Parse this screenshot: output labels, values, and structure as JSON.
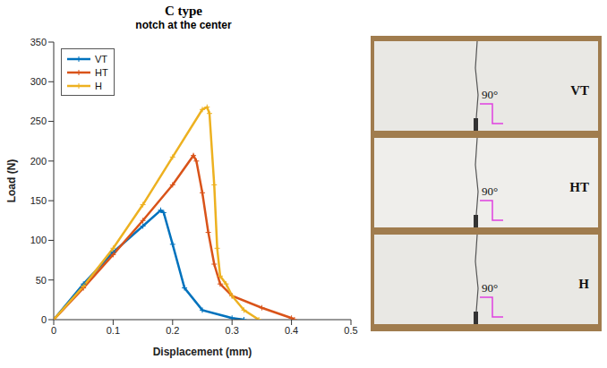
{
  "chart_data": {
    "type": "line",
    "title": "C type",
    "subtitle": "notch at the center",
    "x_label": "Displacement (mm)",
    "y_label": "Load (N)",
    "xlim": [
      0,
      0.5
    ],
    "xticks": [
      0,
      0.1,
      0.2,
      0.3,
      0.4,
      0.5
    ],
    "ylim": [
      0,
      350
    ],
    "yticks": [
      0,
      50,
      100,
      150,
      200,
      250,
      300,
      350
    ],
    "grid": false,
    "legend": "upper left",
    "marker": "plus",
    "series": [
      {
        "name": "VT",
        "color": "#0072bd",
        "x": [
          0,
          0.05,
          0.1,
          0.15,
          0.18,
          0.185,
          0.2,
          0.22,
          0.25,
          0.3,
          0.32
        ],
        "values": [
          0,
          45,
          85,
          118,
          138,
          135,
          95,
          40,
          12,
          2,
          0
        ]
      },
      {
        "name": "HT",
        "color": "#d95319",
        "x": [
          0,
          0.05,
          0.1,
          0.15,
          0.2,
          0.235,
          0.24,
          0.25,
          0.26,
          0.27,
          0.28,
          0.3,
          0.35,
          0.4,
          0.405
        ],
        "values": [
          0,
          40,
          82,
          125,
          170,
          207,
          200,
          160,
          110,
          70,
          45,
          30,
          15,
          2,
          0
        ]
      },
      {
        "name": "H",
        "color": "#edb120",
        "x": [
          0,
          0.05,
          0.1,
          0.15,
          0.2,
          0.25,
          0.258,
          0.262,
          0.27,
          0.275,
          0.28,
          0.29,
          0.3,
          0.32,
          0.345
        ],
        "values": [
          0,
          42,
          90,
          145,
          205,
          265,
          268,
          260,
          170,
          90,
          55,
          45,
          30,
          12,
          0
        ]
      }
    ]
  },
  "photo": {
    "specimens": [
      "VT",
      "HT",
      "H"
    ],
    "angle": "90°"
  }
}
